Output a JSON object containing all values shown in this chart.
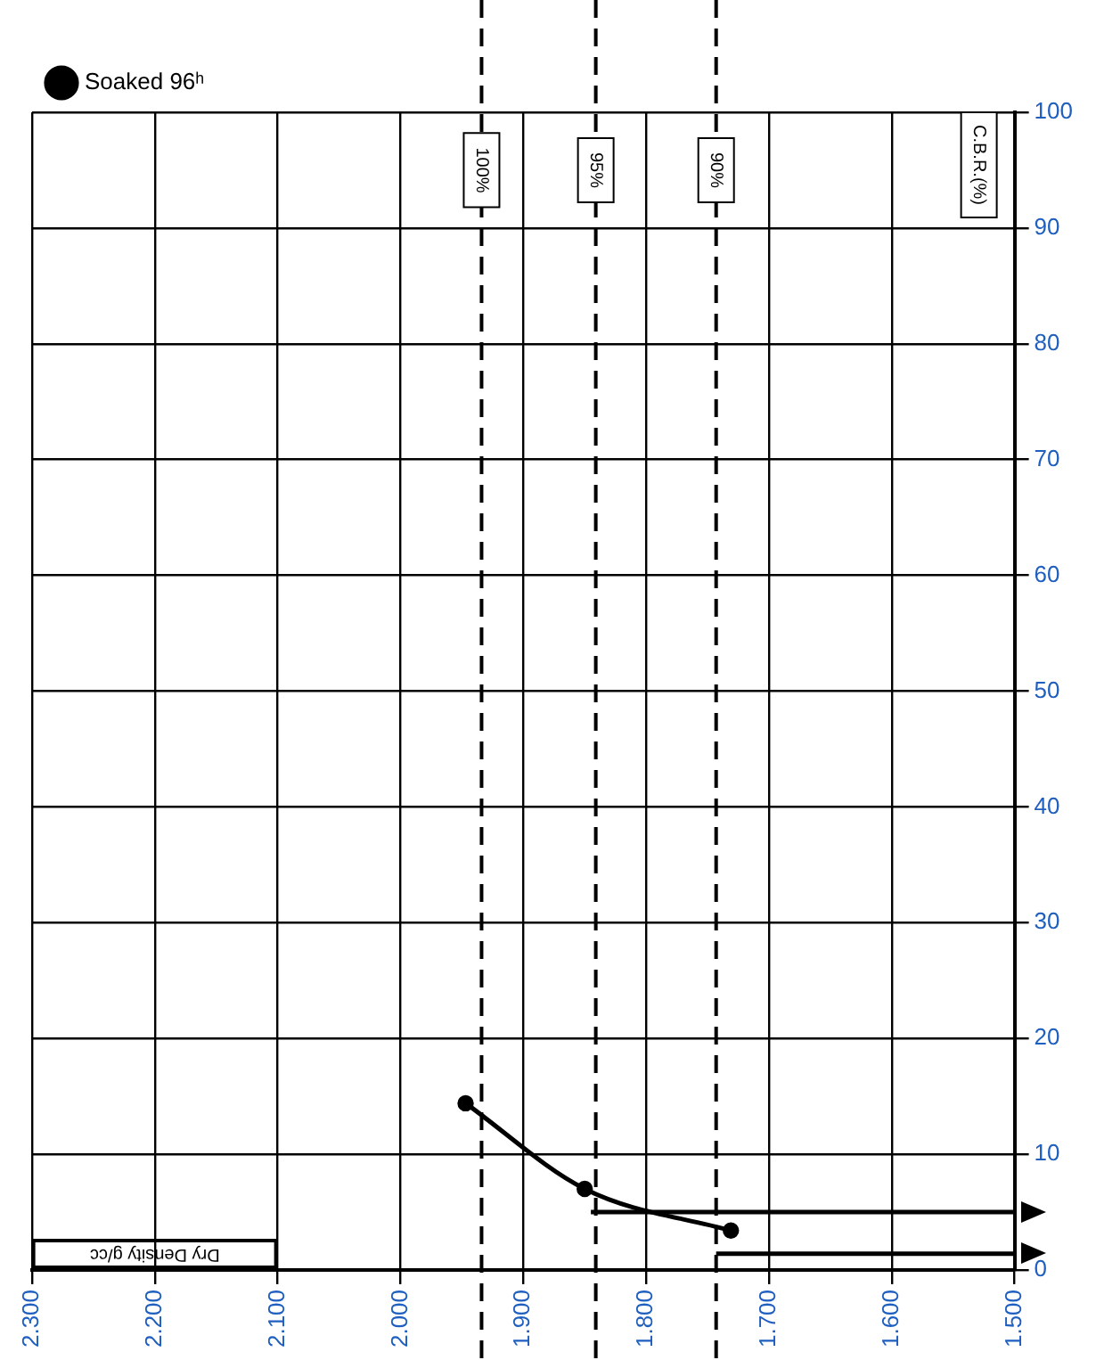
{
  "chart_data": {
    "type": "line",
    "xlabel": "Dry Density g/cc",
    "ylabel": "C.B.R.(%)",
    "xlim": [
      2.3,
      1.5
    ],
    "xticks": [
      {
        "value": 2.3,
        "label": "2.300"
      },
      {
        "value": 2.2,
        "label": "2.200"
      },
      {
        "value": 2.1,
        "label": "2.100"
      },
      {
        "value": 2.0,
        "label": "2.000"
      },
      {
        "value": 1.9,
        "label": "1.900"
      },
      {
        "value": 1.8,
        "label": "1.800"
      },
      {
        "value": 1.7,
        "label": "1.700"
      },
      {
        "value": 1.6,
        "label": "1.600"
      },
      {
        "value": 1.5,
        "label": "1.500"
      }
    ],
    "ylim": [
      0,
      100
    ],
    "yticks": [
      0,
      10,
      20,
      30,
      40,
      50,
      60,
      70,
      80,
      90,
      100
    ],
    "series": [
      {
        "name": "Soaked 96ʰ",
        "color": "#000000",
        "x": [
          1.947,
          1.85,
          1.731
        ],
        "values": [
          14.4,
          7.0,
          3.4
        ],
        "marker": "circle"
      },
      {
        "color": "#000000",
        "x": [
          1.845,
          1.5
        ],
        "values": [
          5.0,
          5.0
        ],
        "marker": "none"
      },
      {
        "color": "#000000",
        "x": [
          1.743,
          1.5
        ],
        "values": [
          1.4,
          1.4
        ],
        "marker": "none"
      }
    ],
    "ref_lines": [
      {
        "axis": "x",
        "value": 1.934,
        "line_style": "dashed",
        "color": "#000000"
      },
      {
        "axis": "x",
        "value": 1.841,
        "line_style": "dashed",
        "color": "#000000"
      },
      {
        "axis": "x",
        "value": 1.743,
        "line_style": "dashed",
        "color": "#000000"
      }
    ],
    "annotations": [
      {
        "text": "100%",
        "x": 1.934,
        "y": 95
      },
      {
        "text": "95%",
        "x": 1.841,
        "y": 95
      },
      {
        "text": "90%",
        "x": 1.743,
        "y": 95
      }
    ],
    "grid": true,
    "legend": "top left"
  }
}
